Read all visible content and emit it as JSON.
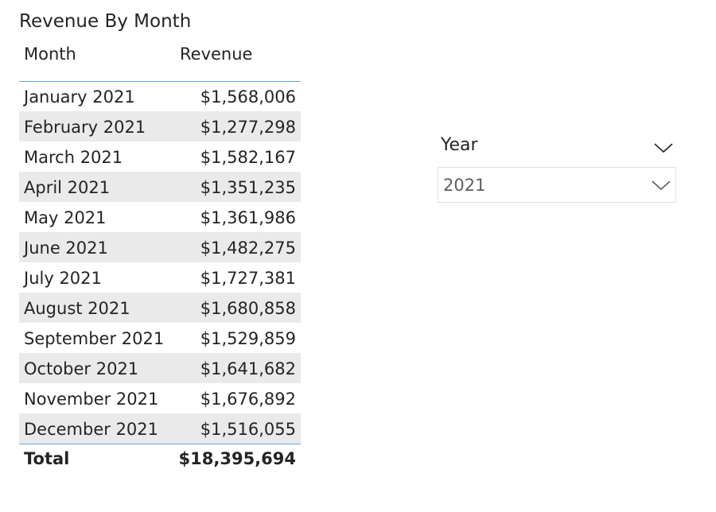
{
  "table": {
    "title": "Revenue By Month",
    "columns": {
      "month": "Month",
      "revenue": "Revenue"
    },
    "rows": [
      {
        "month": "January 2021",
        "revenue": "$1,568,006"
      },
      {
        "month": "February 2021",
        "revenue": "$1,277,298"
      },
      {
        "month": "March 2021",
        "revenue": "$1,582,167"
      },
      {
        "month": "April 2021",
        "revenue": "$1,351,235"
      },
      {
        "month": "May 2021",
        "revenue": "$1,361,986"
      },
      {
        "month": "June 2021",
        "revenue": "$1,482,275"
      },
      {
        "month": "July 2021",
        "revenue": "$1,727,381"
      },
      {
        "month": "August 2021",
        "revenue": "$1,680,858"
      },
      {
        "month": "September 2021",
        "revenue": "$1,529,859"
      },
      {
        "month": "October 2021",
        "revenue": "$1,641,682"
      },
      {
        "month": "November 2021",
        "revenue": "$1,676,892"
      },
      {
        "month": "December 2021",
        "revenue": "$1,516,055"
      }
    ],
    "total": {
      "label": "Total",
      "value": "$18,395,694"
    }
  },
  "slicer": {
    "title": "Year",
    "selected": "2021",
    "header_icon": "chevron-down-icon",
    "dropdown_icon": "chevron-down-icon"
  },
  "colors": {
    "accent_line": "#64a8e6",
    "alt_row": "#eaeaea",
    "slicer_border": "#e1e1e1"
  }
}
